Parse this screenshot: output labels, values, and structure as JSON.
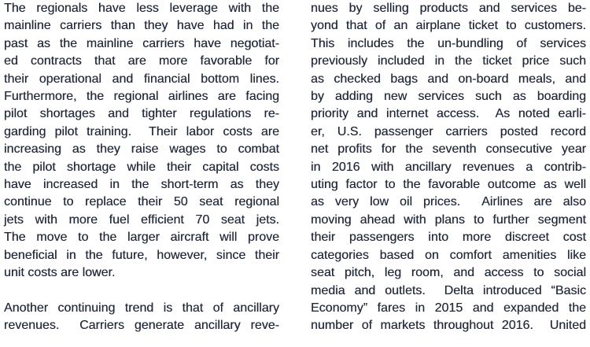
{
  "document": {
    "kind": "scanned-text-page",
    "text_color": "#212838",
    "background_color": "#ffffff",
    "columns": [
      {
        "name": "left-column",
        "paragraphs": [
          {
            "justify_last_line": false,
            "lines": [
              "The regionals have less leverage with the",
              "mainline carriers than they have had in the",
              "past as the mainline carriers have negotiat-",
              "ed contracts that are more favorable for",
              "their operational and financial bottom lines.",
              "Furthermore, the regional airlines are facing",
              "pilot shortages and tighter regulations re-",
              "garding pilot training.  Their labor costs are",
              "increasing as they raise wages to combat",
              "the pilot shortage while their capital costs",
              "have increased in the short-term as they",
              "continue to replace their 50 seat regional",
              "jets with more fuel efficient 70 seat jets.",
              "The move to the larger aircraft will prove",
              "beneficial in the future, however, since their",
              "unit costs are lower."
            ]
          },
          {
            "justify_last_line": true,
            "lines": [
              "Another continuing trend is that of ancillary",
              "revenues.  Carriers generate ancillary reve-"
            ]
          }
        ]
      },
      {
        "name": "right-column",
        "paragraphs": [
          {
            "justify_last_line": true,
            "lines": [
              "nues by selling products and services be-",
              "yond that of an airplane ticket to customers.",
              "This includes the un-bundling of services",
              "previously included in the ticket price such",
              "as checked bags and on-board meals, and",
              "by adding new services such as boarding",
              "priority and internet access.  As noted earli-",
              "er, U.S. passenger carriers posted record",
              "net profits for the seventh consecutive year",
              "in 2016 with ancillary revenues a contrib-",
              "uting factor to the favorable outcome as well",
              "as very low oil prices.  Airlines are also",
              "moving ahead with plans to further segment",
              "their passengers into more discreet cost",
              "categories based on comfort amenities like",
              "seat pitch, leg room, and access to social",
              "media and outlets.  Delta introduced “Basic",
              "Economy” fares in 2015 and expanded the",
              "number of markets throughout 2016.  United"
            ]
          }
        ]
      }
    ]
  }
}
